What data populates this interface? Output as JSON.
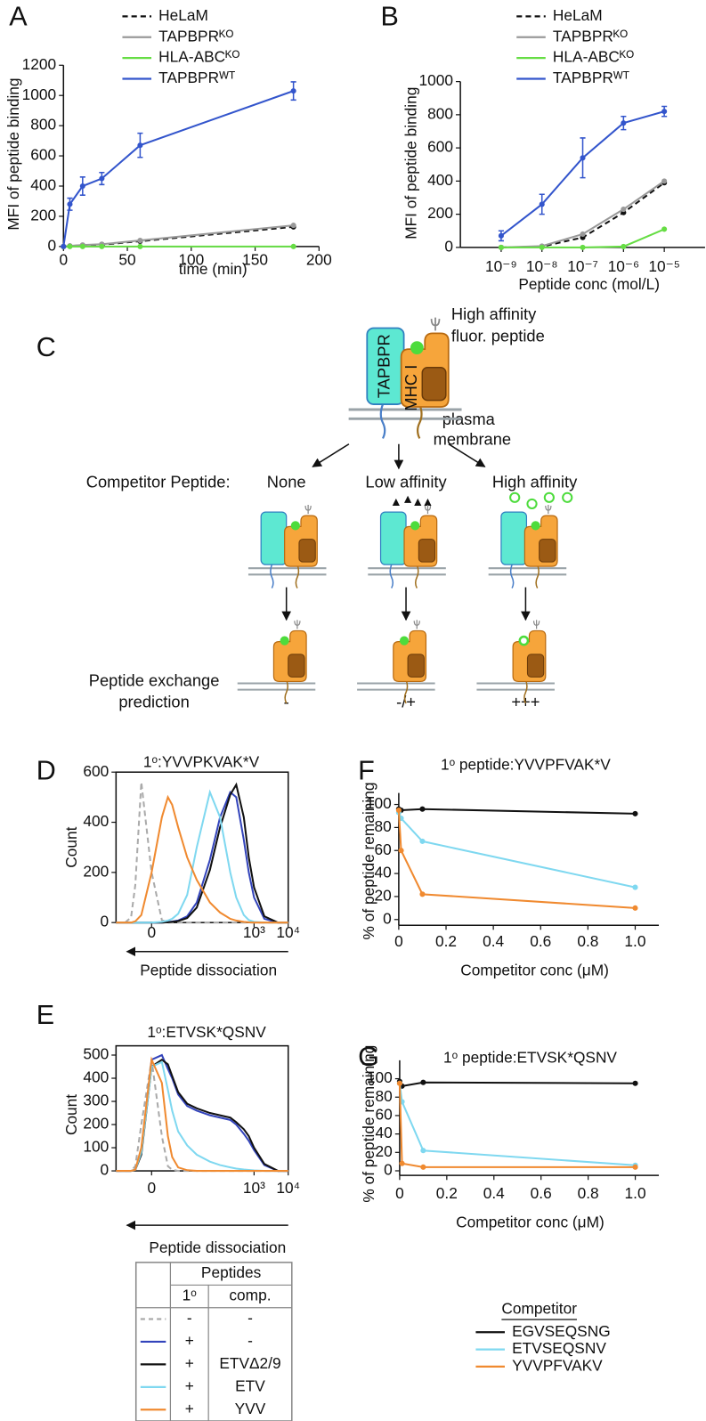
{
  "chart_data": [
    {
      "type": "line",
      "panel_label": "A",
      "ylabel": "MFI of peptide binding",
      "xlabel": "time (min)",
      "x": [
        0,
        5,
        15,
        30,
        60,
        180
      ],
      "xlim": [
        0,
        200
      ],
      "xticks": [
        0,
        50,
        100,
        150,
        200
      ],
      "ylim": [
        0,
        1200
      ],
      "yticks": [
        0,
        200,
        400,
        600,
        800,
        1000,
        1200
      ],
      "legend": "top",
      "markers": true,
      "frame": false,
      "series": [
        {
          "name": "HeLaM",
          "color": "#111111",
          "dash": true,
          "values": [
            0,
            3,
            8,
            12,
            35,
            130
          ]
        },
        {
          "name": "TAPBPRᴷᴼ",
          "color": "#999999",
          "dash": false,
          "values": [
            0,
            4,
            10,
            15,
            40,
            140
          ]
        },
        {
          "name": "HLA-ABCᴷᴼ",
          "color": "#66dd44",
          "dash": false,
          "values": [
            0,
            0,
            0,
            0,
            0,
            0
          ]
        },
        {
          "name": "TAPBPRᵂᵀ",
          "color": "#3355cc",
          "dash": false,
          "values": [
            0,
            280,
            400,
            450,
            670,
            1030
          ],
          "errors": [
            0,
            40,
            60,
            40,
            80,
            60
          ]
        }
      ]
    },
    {
      "type": "line",
      "panel_label": "B",
      "ylabel": "MFI of peptide binding",
      "xlabel": "Peptide conc (mol/L)",
      "xscale": "log",
      "x": [
        1e-09,
        1e-08,
        1e-07,
        1e-06,
        1e-05
      ],
      "xlim": [
        1e-10,
        0.0001
      ],
      "xticks": [
        {
          "value": 1e-09,
          "label": "10⁻⁹"
        },
        {
          "value": 1e-08,
          "label": "10⁻⁸"
        },
        {
          "value": 1e-07,
          "label": "10⁻⁷"
        },
        {
          "value": 1e-06,
          "label": "10⁻⁶"
        },
        {
          "value": 1e-05,
          "label": "10⁻⁵"
        }
      ],
      "ylim": [
        0,
        1000
      ],
      "yticks": [
        0,
        200,
        400,
        600,
        800,
        1000
      ],
      "legend": "top",
      "markers": true,
      "frame": false,
      "series": [
        {
          "name": "HeLaM",
          "color": "#111111",
          "dash": true,
          "values": [
            0,
            5,
            60,
            210,
            390
          ]
        },
        {
          "name": "TAPBPRᴷᴼ",
          "color": "#999999",
          "dash": false,
          "values": [
            0,
            8,
            80,
            230,
            400
          ]
        },
        {
          "name": "HLA-ABCᴷᴼ",
          "color": "#66dd44",
          "dash": false,
          "values": [
            0,
            0,
            0,
            5,
            110
          ]
        },
        {
          "name": "TAPBPRᵂᵀ",
          "color": "#3355cc",
          "dash": false,
          "values": [
            70,
            260,
            540,
            750,
            820
          ],
          "errors": [
            30,
            60,
            120,
            40,
            30
          ]
        }
      ]
    },
    {
      "type": "line",
      "panel_label": "D",
      "title": "1ᵒ:YVVPKVAK*V",
      "ylabel": "Count",
      "xlabel": "Peptide dissociation",
      "xscale": "symlog",
      "x": [
        -10,
        -5,
        -3,
        -2,
        -1,
        0,
        1,
        2,
        3,
        5,
        10,
        20,
        50,
        100,
        200,
        300,
        500,
        700,
        1000,
        2000,
        5000,
        10000
      ],
      "xlim": [
        -10,
        10000
      ],
      "xticks": [
        0,
        {
          "value": 1000,
          "label": "10³"
        },
        {
          "value": 10000,
          "label": "10⁴"
        }
      ],
      "ylim": [
        0,
        600
      ],
      "yticks": [
        0,
        200,
        400,
        600
      ],
      "markers": false,
      "frame": true,
      "series": [
        {
          "color": "#aaaaaa",
          "dash": true,
          "values": [
            0,
            0,
            20,
            150,
            560,
            200,
            10,
            0,
            0,
            0,
            0,
            0,
            0,
            0,
            0,
            0,
            0,
            0,
            0,
            0,
            0,
            0
          ]
        },
        {
          "color": "#3344bb",
          "dash": false,
          "values": [
            0,
            0,
            0,
            0,
            0,
            0,
            0,
            2,
            4,
            8,
            25,
            80,
            250,
            420,
            520,
            500,
            330,
            200,
            100,
            15,
            0,
            0
          ]
        },
        {
          "color": "#111111",
          "dash": false,
          "values": [
            0,
            0,
            0,
            0,
            0,
            0,
            0,
            1,
            3,
            6,
            18,
            60,
            210,
            380,
            510,
            550,
            420,
            260,
            140,
            25,
            0,
            0
          ]
        },
        {
          "color": "#7fd8f0",
          "dash": false,
          "values": [
            0,
            0,
            0,
            0,
            0,
            0,
            3,
            8,
            15,
            35,
            110,
            300,
            520,
            420,
            200,
            100,
            30,
            10,
            3,
            0,
            0,
            0
          ]
        },
        {
          "color": "#f08a30",
          "dash": false,
          "values": [
            0,
            0,
            0,
            5,
            30,
            200,
            420,
            500,
            470,
            380,
            260,
            170,
            80,
            40,
            15,
            8,
            3,
            1,
            0,
            0,
            0,
            0
          ]
        }
      ]
    },
    {
      "type": "line",
      "panel_label": "E",
      "title": "1ᵒ:ETVSK*QSNV",
      "ylabel": "Count",
      "xlabel": "Peptide dissociation",
      "xscale": "symlog",
      "x": [
        -10,
        -5,
        -3,
        -2,
        -1,
        0,
        1,
        2,
        3,
        5,
        10,
        20,
        50,
        100,
        200,
        300,
        500,
        700,
        1000,
        2000,
        5000,
        10000
      ],
      "xlim": [
        -10,
        10000
      ],
      "xticks": [
        0,
        {
          "value": 1000,
          "label": "10³"
        },
        {
          "value": 10000,
          "label": "10⁴"
        }
      ],
      "ylim": [
        0,
        540
      ],
      "yticks": [
        0,
        100,
        200,
        300,
        400,
        500
      ],
      "markers": false,
      "frame": true,
      "series": [
        {
          "color": "#aaaaaa",
          "dash": true,
          "values": [
            0,
            0,
            0,
            20,
            200,
            480,
            150,
            20,
            5,
            0,
            0,
            0,
            0,
            0,
            0,
            0,
            0,
            0,
            0,
            0,
            0,
            0
          ]
        },
        {
          "color": "#3344bb",
          "dash": false,
          "values": [
            0,
            0,
            0,
            5,
            80,
            480,
            500,
            440,
            400,
            330,
            280,
            260,
            240,
            230,
            220,
            200,
            160,
            130,
            90,
            25,
            0,
            0
          ]
        },
        {
          "color": "#111111",
          "dash": false,
          "values": [
            0,
            0,
            0,
            5,
            70,
            450,
            480,
            460,
            410,
            340,
            290,
            270,
            250,
            240,
            230,
            210,
            180,
            150,
            100,
            30,
            0,
            0
          ]
        },
        {
          "color": "#7fd8f0",
          "dash": false,
          "values": [
            0,
            0,
            0,
            5,
            80,
            450,
            470,
            350,
            260,
            170,
            110,
            70,
            40,
            25,
            15,
            10,
            6,
            4,
            2,
            0,
            0,
            0
          ]
        },
        {
          "color": "#f08a30",
          "dash": false,
          "values": [
            0,
            0,
            0,
            5,
            100,
            480,
            380,
            150,
            60,
            15,
            3,
            0,
            0,
            0,
            0,
            0,
            0,
            0,
            0,
            0,
            0,
            0
          ]
        }
      ]
    },
    {
      "type": "line",
      "panel_label": "F",
      "title": "1ᵒ peptide:YVVPFVAK*V",
      "ylabel": "% of peptide remaining",
      "xlabel": "Competitor conc (μM)",
      "x": [
        0,
        0.01,
        0.1,
        1
      ],
      "xlim": [
        0,
        1.1
      ],
      "xticks": [
        0,
        0.2,
        0.4,
        0.6,
        0.8,
        {
          "value": 1,
          "label": "1.0"
        }
      ],
      "ylim": [
        -5,
        110
      ],
      "yticks": [
        0,
        20,
        40,
        60,
        80,
        100
      ],
      "markers": true,
      "frame": false,
      "series": [
        {
          "color": "#111111",
          "dash": false,
          "values": [
            96,
            95,
            96,
            92
          ]
        },
        {
          "color": "#7fd8f0",
          "dash": false,
          "values": [
            93,
            88,
            68,
            28
          ]
        },
        {
          "color": "#f08a30",
          "dash": false,
          "values": [
            95,
            60,
            22,
            10
          ]
        }
      ]
    },
    {
      "type": "line",
      "panel_label": "G",
      "title": "1ᵒ peptide:ETVSK*QSNV",
      "ylabel": "% of peptide remaining",
      "xlabel": "Competitor conc (μM)",
      "x": [
        0,
        0.01,
        0.1,
        1
      ],
      "xlim": [
        0,
        1.1
      ],
      "xticks": [
        0,
        0.2,
        0.4,
        0.6,
        0.8,
        {
          "value": 1,
          "label": "1.0"
        }
      ],
      "ylim": [
        -5,
        120
      ],
      "yticks": [
        0,
        20,
        40,
        60,
        80,
        100
      ],
      "markers": true,
      "frame": false,
      "legend": "bottom",
      "legend_title": "Competitor",
      "series": [
        {
          "name": "EGVSEQSNG",
          "color": "#111111",
          "dash": false,
          "values": [
            97,
            92,
            96,
            95
          ]
        },
        {
          "name": "ETVSEQSNV",
          "color": "#7fd8f0",
          "dash": false,
          "values": [
            95,
            75,
            22,
            6
          ]
        },
        {
          "name": "YVVPFVAKV",
          "color": "#f08a30",
          "dash": false,
          "values": [
            95,
            8,
            4,
            4
          ]
        }
      ]
    }
  ],
  "diagram": {
    "label": "C",
    "tapbpr": "TAPBPR",
    "mhc": "MHC I",
    "peptide_note": [
      "High affinity",
      "fluor. peptide"
    ],
    "membrane_note": [
      "plasma",
      "membrane"
    ],
    "competitor_label": "Competitor Peptide:",
    "competitors": [
      "None",
      "Low affinity",
      "High affinity"
    ],
    "prediction_label": [
      "Peptide exchange",
      "prediction"
    ],
    "predictions": [
      "-",
      "-/+",
      "+++"
    ]
  },
  "legend_table": {
    "header": "Peptides",
    "columns": [
      "1ᵒ",
      "comp."
    ],
    "rows": [
      {
        "color": "#aaaaaa",
        "dash": true,
        "cells": [
          "-",
          "-"
        ]
      },
      {
        "color": "#3344bb",
        "dash": false,
        "cells": [
          "+",
          "-"
        ]
      },
      {
        "color": "#111111",
        "dash": false,
        "cells": [
          "+",
          "ETVΔ2/9"
        ]
      },
      {
        "color": "#7fd8f0",
        "dash": false,
        "cells": [
          "+",
          "ETV"
        ]
      },
      {
        "color": "#f08a30",
        "dash": false,
        "cells": [
          "+",
          "YVV"
        ]
      }
    ]
  }
}
